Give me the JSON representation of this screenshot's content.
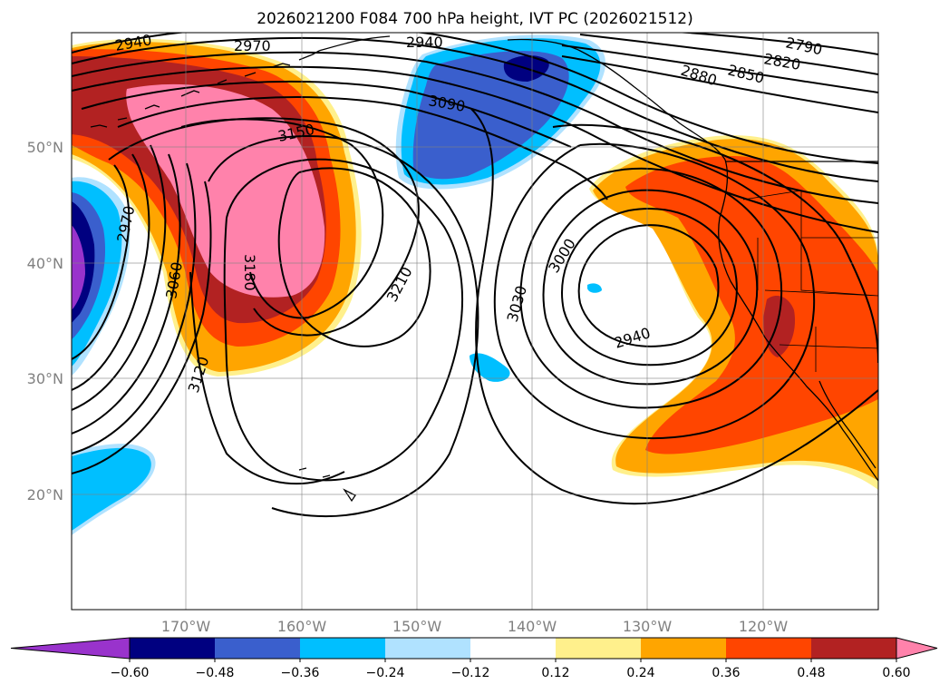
{
  "title": "2026021200 F084 700 hPa height, IVT PC (2026021512)",
  "lat_labels": [
    "50°N",
    "40°N",
    "30°N",
    "20°N"
  ],
  "lon_labels": [
    "170°W",
    "160°W",
    "150°W",
    "140°W",
    "130°W",
    "120°W"
  ],
  "contour_labels": [
    "2940",
    "2970",
    "2940",
    "2790",
    "2820",
    "2850",
    "2880",
    "3090",
    "3150",
    "2970",
    "3060",
    "3180",
    "3210",
    "3000",
    "3030",
    "2940",
    "3120"
  ],
  "colorbar": {
    "ticks": [
      "−0.60",
      "−0.48",
      "−0.36",
      "−0.24",
      "−0.12",
      "0.12",
      "0.24",
      "0.36",
      "0.48",
      "0.60"
    ],
    "colors": [
      "#9933cc",
      "#000080",
      "#3a5fcd",
      "#00bfff",
      "#b0e2ff",
      "#ffffff",
      "#fff08c",
      "#ffa500",
      "#ff4500",
      "#b22222",
      "#ff82ab"
    ]
  },
  "fill_colors": {
    "pink": "#ff82ab",
    "firebrick": "#b22222",
    "orangered": "#ff4500",
    "orange": "#ffa500",
    "lightyellow": "#fff08c",
    "lightblue": "#b0e2ff",
    "deepskyblue": "#00bfff",
    "royalblue": "#3a5fcd",
    "navy": "#000080",
    "purple": "#9933cc"
  }
}
